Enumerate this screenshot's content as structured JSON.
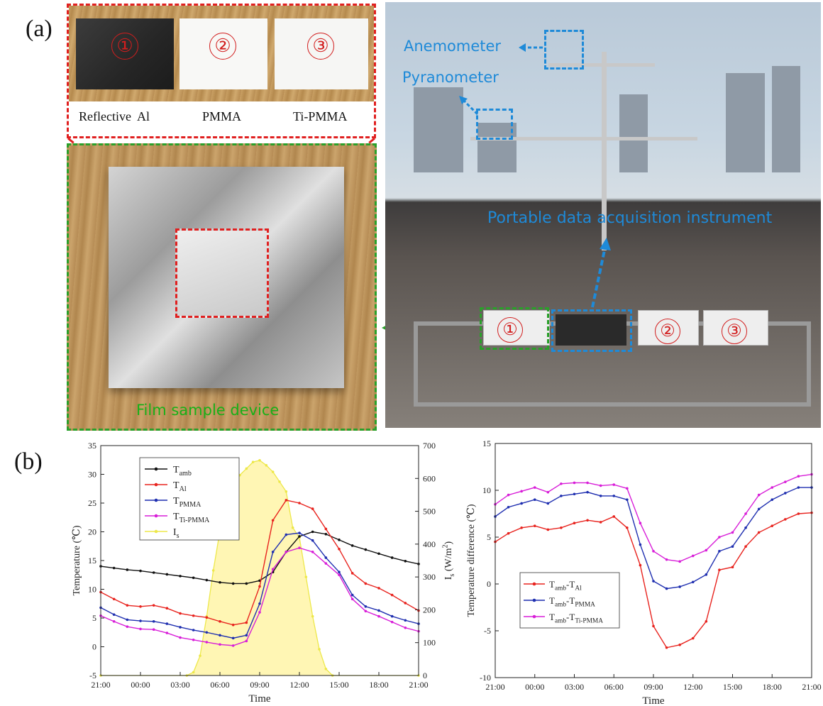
{
  "panels": {
    "a": "(a)",
    "b": "(b)"
  },
  "photo": {
    "sample_numbers": [
      "①",
      "②",
      "③"
    ],
    "sample_labels": [
      "Reflective  Al",
      "PMMA",
      "Ti-PMMA"
    ],
    "device_caption": "Film sample device",
    "anemometer": "Anemometer",
    "pyranometer": "Pyranometer",
    "daq": "Portable data acquisition instrument",
    "colors": {
      "red_frame": "#e02020",
      "green_frame": "#2aa02a",
      "blue_text": "#1e8ad8"
    }
  },
  "chart_data": [
    {
      "type": "line",
      "xlabel": "Time",
      "ylabel": "Temperature (℃)",
      "y2label": "I",
      "y2label_sub": "s",
      "y2label_unit": " (W/m",
      "y2label_sup": "2",
      "y2label_end": ")",
      "x": [
        0,
        3,
        6,
        9,
        12,
        15,
        18,
        21,
        24
      ],
      "xticks": [
        "21:00",
        "00:00",
        "03:00",
        "06:00",
        "09:00",
        "12:00",
        "15:00",
        "18:00",
        "21:00"
      ],
      "ylim": [
        -5,
        35
      ],
      "yticks": [
        "-5",
        "0",
        "5",
        "10",
        "15",
        "20",
        "25",
        "30",
        "35"
      ],
      "y2lim": [
        0,
        700
      ],
      "y2ticks": [
        "0",
        "100",
        "200",
        "300",
        "400",
        "500",
        "600",
        "700"
      ],
      "legend_position": "top-left",
      "legend": [
        {
          "main": "T",
          "sub": "amb"
        },
        {
          "main": "T",
          "sub": "Al"
        },
        {
          "main": "T",
          "sub": "PMMA"
        },
        {
          "main": "T",
          "sub": "Ti-PMMA"
        },
        {
          "main": "I",
          "sub": "s"
        }
      ],
      "series": [
        {
          "name": "Tamb",
          "color": "#111111",
          "axis": "left",
          "x": [
            0,
            1,
            2,
            3,
            4,
            5,
            6,
            7,
            8,
            9,
            10,
            11,
            12,
            13,
            14,
            15,
            16,
            17,
            18,
            19,
            20,
            21,
            22,
            23,
            24
          ],
          "values": [
            14.0,
            13.7,
            13.4,
            13.2,
            12.9,
            12.6,
            12.3,
            12.0,
            11.6,
            11.2,
            11.0,
            11.0,
            11.5,
            13.0,
            16.5,
            19.2,
            20.0,
            19.6,
            18.6,
            17.6,
            16.9,
            16.2,
            15.5,
            14.9,
            14.4
          ]
        },
        {
          "name": "TAl",
          "color": "#e8231e",
          "axis": "left",
          "x": [
            0,
            1,
            2,
            3,
            4,
            5,
            6,
            7,
            8,
            9,
            10,
            11,
            12,
            13,
            14,
            15,
            16,
            17,
            18,
            19,
            20,
            21,
            22,
            23,
            24
          ],
          "values": [
            9.5,
            8.3,
            7.2,
            7.0,
            7.2,
            6.7,
            5.8,
            5.4,
            5.1,
            4.4,
            3.8,
            4.2,
            10.5,
            22.0,
            25.5,
            25.0,
            24.0,
            20.5,
            17.0,
            12.8,
            11.0,
            10.2,
            9.0,
            7.6,
            6.3
          ]
        },
        {
          "name": "TPMMA",
          "color": "#1f2fb0",
          "axis": "left",
          "x": [
            0,
            1,
            2,
            3,
            4,
            5,
            6,
            7,
            8,
            9,
            10,
            11,
            12,
            13,
            14,
            15,
            16,
            17,
            18,
            19,
            20,
            21,
            22,
            23,
            24
          ],
          "values": [
            6.8,
            5.6,
            4.7,
            4.5,
            4.4,
            4.0,
            3.4,
            2.9,
            2.5,
            2.0,
            1.5,
            2.0,
            7.5,
            16.5,
            19.5,
            19.8,
            18.5,
            15.5,
            13.0,
            9.0,
            7.0,
            6.3,
            5.3,
            4.6,
            4.0
          ]
        },
        {
          "name": "TTi-PMMA",
          "color": "#d81ed8",
          "axis": "left",
          "x": [
            0,
            1,
            2,
            3,
            4,
            5,
            6,
            7,
            8,
            9,
            10,
            11,
            12,
            13,
            14,
            15,
            16,
            17,
            18,
            19,
            20,
            21,
            22,
            23,
            24
          ],
          "values": [
            5.4,
            4.4,
            3.5,
            3.1,
            3.0,
            2.4,
            1.6,
            1.2,
            0.8,
            0.4,
            0.2,
            1.0,
            6.0,
            13.5,
            16.5,
            17.2,
            16.5,
            14.5,
            12.5,
            8.3,
            6.2,
            5.3,
            4.3,
            3.3,
            2.7
          ]
        },
        {
          "name": "Is",
          "color": "#ede84a",
          "fill": "#fff6b4",
          "axis": "right",
          "x": [
            0,
            6.5,
            7.0,
            7.5,
            8.0,
            8.5,
            9.0,
            9.5,
            10.0,
            10.5,
            11.0,
            11.5,
            12.0,
            12.5,
            13.0,
            13.5,
            14.0,
            14.5,
            15.0,
            15.5,
            16.0,
            16.5,
            17.0,
            17.5,
            24
          ],
          "values": [
            0,
            0,
            10,
            60,
            180,
            320,
            440,
            520,
            580,
            610,
            630,
            650,
            655,
            640,
            620,
            590,
            560,
            450,
            420,
            300,
            180,
            80,
            20,
            0,
            0
          ]
        }
      ]
    },
    {
      "type": "line",
      "xlabel": "Time",
      "ylabel": "Temperature difference (℃)",
      "x": [
        0,
        3,
        6,
        9,
        12,
        15,
        18,
        21,
        24
      ],
      "xticks": [
        "21:00",
        "00:00",
        "03:00",
        "06:00",
        "09:00",
        "12:00",
        "15:00",
        "18:00",
        "21:00"
      ],
      "ylim": [
        -10,
        15
      ],
      "yticks": [
        "-10",
        "-5",
        "0",
        "5",
        "10",
        "15"
      ],
      "legend_position": "lower-center",
      "legend": [
        {
          "a": "T",
          "as": "amb",
          "b": "-T",
          "bs": "Al"
        },
        {
          "a": "T",
          "as": "amb",
          "b": "-T",
          "bs": "PMMA"
        },
        {
          "a": "T",
          "as": "amb",
          "b": "-T",
          "bs": "Ti-PMMA"
        }
      ],
      "series": [
        {
          "name": "Tamb-TAl",
          "color": "#e8231e",
          "x": [
            0,
            1,
            2,
            3,
            4,
            5,
            6,
            7,
            8,
            9,
            10,
            11,
            12,
            13,
            14,
            15,
            16,
            17,
            18,
            19,
            20,
            21,
            22,
            23,
            24
          ],
          "values": [
            4.5,
            5.4,
            6.0,
            6.2,
            5.8,
            6.0,
            6.5,
            6.8,
            6.6,
            7.2,
            6.0,
            2.0,
            -4.5,
            -6.8,
            -6.5,
            -5.8,
            -4.0,
            1.5,
            1.8,
            4.0,
            5.5,
            6.2,
            6.9,
            7.5,
            7.6
          ]
        },
        {
          "name": "Tamb-TPMMA",
          "color": "#1f2fb0",
          "x": [
            0,
            1,
            2,
            3,
            4,
            5,
            6,
            7,
            8,
            9,
            10,
            11,
            12,
            13,
            14,
            15,
            16,
            17,
            18,
            19,
            20,
            21,
            22,
            23,
            24
          ],
          "values": [
            7.2,
            8.2,
            8.6,
            9.0,
            8.6,
            9.4,
            9.6,
            9.8,
            9.4,
            9.4,
            9.0,
            4.2,
            0.3,
            -0.5,
            -0.3,
            0.2,
            1.0,
            3.5,
            4.0,
            6.0,
            8.0,
            9.0,
            9.7,
            10.3,
            10.3
          ]
        },
        {
          "name": "Tamb-TTi-PMMA",
          "color": "#d81ed8",
          "x": [
            0,
            1,
            2,
            3,
            4,
            5,
            6,
            7,
            8,
            9,
            10,
            11,
            12,
            13,
            14,
            15,
            16,
            17,
            18,
            19,
            20,
            21,
            22,
            23,
            24
          ],
          "values": [
            8.5,
            9.5,
            9.9,
            10.3,
            9.8,
            10.7,
            10.8,
            10.8,
            10.5,
            10.6,
            10.2,
            6.5,
            3.5,
            2.6,
            2.4,
            3.0,
            3.6,
            5.0,
            5.5,
            7.5,
            9.5,
            10.3,
            10.9,
            11.5,
            11.7
          ]
        }
      ]
    }
  ]
}
